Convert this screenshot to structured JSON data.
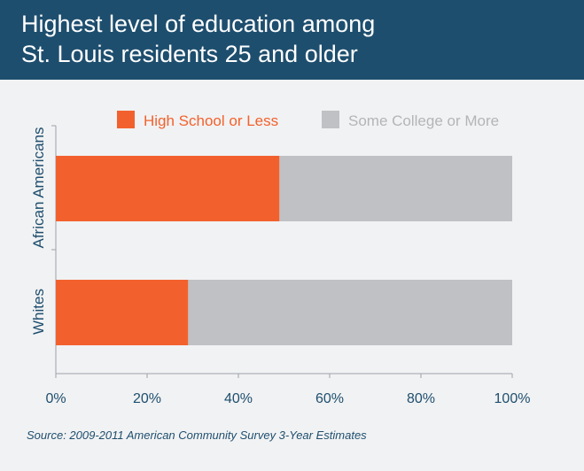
{
  "header": {
    "title_line1": "Highest level of education among",
    "title_line2": "St. Louis residents 25 and older"
  },
  "colors": {
    "header_bg": "#1e4e6e",
    "high_school": "#f2612d",
    "some_college": "#bfc1c4",
    "axis_text": "#1e4e6e",
    "card_bg": "#f1f2f3"
  },
  "chart_data": {
    "type": "bar",
    "orientation": "horizontal",
    "stacked": true,
    "categories": [
      "African Americans",
      "Whites"
    ],
    "series": [
      {
        "name": "High School or Less",
        "values": [
          49,
          29
        ]
      },
      {
        "name": "Some College or More",
        "values": [
          51,
          71
        ]
      }
    ],
    "xlim": [
      0,
      100
    ],
    "x_ticks": [
      "0%",
      "20%",
      "40%",
      "60%",
      "80%",
      "100%"
    ],
    "legend_position": "top",
    "grid": false
  },
  "source": "Source: 2009-2011 American Community Survey 3-Year Estimates"
}
